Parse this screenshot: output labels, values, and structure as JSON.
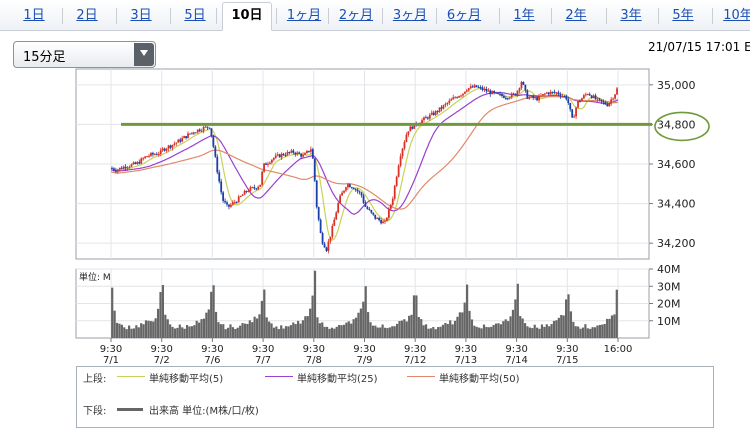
{
  "tabs": [
    {
      "label": "1日"
    },
    {
      "label": "2日"
    },
    {
      "label": "3日"
    },
    {
      "label": "5日"
    },
    {
      "label": "10日",
      "active": true
    },
    {
      "label": "1ヶ月"
    },
    {
      "label": "2ヶ月"
    },
    {
      "label": "3ヶ月"
    },
    {
      "label": "6ヶ月"
    },
    {
      "label": "1年"
    },
    {
      "label": "2年"
    },
    {
      "label": "3年"
    },
    {
      "label": "5年"
    },
    {
      "label": "10年"
    }
  ],
  "interval_select": {
    "value": "15分足"
  },
  "timestamp": "21/07/15 17:01 E",
  "chart_data": {
    "type": "candlestick",
    "sessions": [
      "7/1",
      "7/2",
      "7/6",
      "7/7",
      "7/8",
      "7/9",
      "7/12",
      "7/13",
      "7/14",
      "7/15"
    ],
    "x_tick_times": [
      "9:30",
      "9:30",
      "9:30",
      "9:30",
      "9:30",
      "9:30",
      "9:30",
      "9:30",
      "9:30",
      "9:30",
      "16:00"
    ],
    "x_tick_dates": [
      "7/1",
      "7/2",
      "7/6",
      "7/7",
      "7/8",
      "7/9",
      "7/12",
      "7/13",
      "7/14",
      "7/15",
      ""
    ],
    "price_ticks": [
      34200,
      34400,
      34600,
      34800,
      35000
    ],
    "price_tick_labels": [
      "34,200",
      "34,400",
      "34,600",
      "34,800",
      "35,000"
    ],
    "ylim": [
      34120,
      35080
    ],
    "horizontal_line": {
      "value": 34800,
      "color": "#6f9a3a",
      "circled_label": "34,800"
    },
    "close_path": [
      [
        0,
        34580
      ],
      [
        0.1,
        34570
      ],
      [
        0.3,
        34590
      ],
      [
        0.5,
        34600
      ],
      [
        0.7,
        34640
      ],
      [
        1.0,
        34660
      ],
      [
        1.0,
        34670
      ],
      [
        1.3,
        34710
      ],
      [
        1.6,
        34760
      ],
      [
        1.8,
        34780
      ],
      [
        1.95,
        34790
      ],
      [
        2.0,
        34720
      ],
      [
        2.1,
        34560
      ],
      [
        2.2,
        34420
      ],
      [
        2.3,
        34380
      ],
      [
        2.5,
        34420
      ],
      [
        2.7,
        34470
      ],
      [
        2.85,
        34480
      ],
      [
        2.95,
        34500
      ],
      [
        3.0,
        34590
      ],
      [
        3.2,
        34630
      ],
      [
        3.4,
        34650
      ],
      [
        3.6,
        34660
      ],
      [
        3.8,
        34640
      ],
      [
        3.95,
        34680
      ],
      [
        4.0,
        34590
      ],
      [
        4.05,
        34400
      ],
      [
        4.15,
        34220
      ],
      [
        4.25,
        34170
      ],
      [
        4.35,
        34260
      ],
      [
        4.5,
        34420
      ],
      [
        4.65,
        34500
      ],
      [
        4.8,
        34480
      ],
      [
        4.95,
        34440
      ],
      [
        5.0,
        34390
      ],
      [
        5.2,
        34330
      ],
      [
        5.4,
        34300
      ],
      [
        5.55,
        34420
      ],
      [
        5.7,
        34640
      ],
      [
        5.85,
        34770
      ],
      [
        5.95,
        34790
      ],
      [
        6.0,
        34800
      ],
      [
        6.2,
        34830
      ],
      [
        6.4,
        34860
      ],
      [
        6.6,
        34900
      ],
      [
        6.8,
        34940
      ],
      [
        6.95,
        34960
      ],
      [
        7.0,
        34980
      ],
      [
        7.2,
        34990
      ],
      [
        7.4,
        34970
      ],
      [
        7.6,
        34950
      ],
      [
        7.8,
        34940
      ],
      [
        7.95,
        34950
      ],
      [
        8.0,
        34960
      ],
      [
        8.1,
        35020
      ],
      [
        8.2,
        34940
      ],
      [
        8.4,
        34930
      ],
      [
        8.6,
        34960
      ],
      [
        8.8,
        34960
      ],
      [
        8.95,
        34940
      ],
      [
        9.0,
        34930
      ],
      [
        9.1,
        34820
      ],
      [
        9.2,
        34910
      ],
      [
        9.4,
        34960
      ],
      [
        9.6,
        34920
      ],
      [
        9.8,
        34900
      ],
      [
        9.95,
        34960
      ],
      [
        10.0,
        34990
      ]
    ],
    "moving_averages": [
      {
        "name": "単純移動平均(5)",
        "color": "#c8d25a"
      },
      {
        "name": "単純移動平均(25)",
        "color": "#9a3fd0"
      },
      {
        "name": "単純移動平均(50)",
        "color": "#e08a6a"
      }
    ],
    "volume_unit_label": "単位: M",
    "volume_ticks": [
      10,
      20,
      30,
      40
    ],
    "volume_tick_labels": [
      "10M",
      "20M",
      "30M",
      "40M"
    ],
    "volume_ylim": [
      0,
      40
    ],
    "volume_profile_millions": [
      28,
      14,
      10,
      8,
      7,
      6,
      6,
      7,
      6,
      6,
      7,
      7,
      8,
      8,
      9,
      9,
      10,
      11,
      13,
      15,
      24
    ],
    "volume_color": "#666666"
  },
  "legend": {
    "upper_label": "上段:",
    "lower_label": "下段:",
    "volume_entry": "出来高 単位:(M株/口/枚)"
  }
}
